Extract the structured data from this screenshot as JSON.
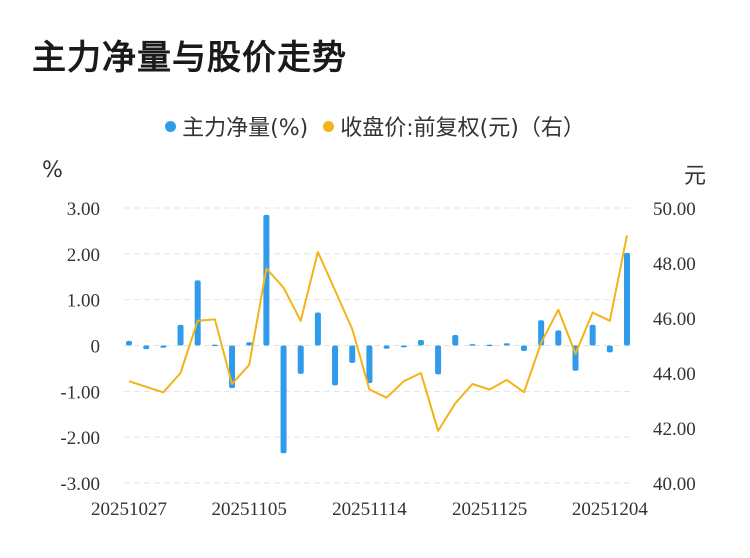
{
  "title": "主力净量与股价走势",
  "legend": {
    "series1": "主力净量(%)",
    "series2": "收盘价:前复权(元)（右）"
  },
  "axis": {
    "left_unit": "%",
    "right_unit": "元"
  },
  "colors": {
    "bar": "#2f9bea",
    "line": "#f2b418",
    "grid": "#e3e3e3"
  },
  "chart_data": {
    "type": "bar",
    "title": "主力净量与股价走势",
    "x_tick_labels": [
      "20251027",
      "20251105",
      "20251114",
      "20251125",
      "20251204"
    ],
    "x_tick_indices": [
      0,
      7,
      14,
      21,
      28
    ],
    "y_left": {
      "label": "%",
      "range": [
        -3,
        3
      ],
      "ticks": [
        "3.00",
        "2.00",
        "1.00",
        "0",
        "-1.00",
        "-2.00",
        "-3.00"
      ]
    },
    "y_right": {
      "label": "元",
      "range": [
        40,
        50
      ],
      "ticks": [
        "50.00",
        "48.00",
        "46.00",
        "44.00",
        "42.00",
        "40.00"
      ]
    },
    "grid": true,
    "legend_position": "top-center",
    "series": [
      {
        "name": "主力净量(%)",
        "type": "bar",
        "axis": "left",
        "values": [
          0.1,
          -0.08,
          -0.05,
          0.45,
          1.42,
          0.02,
          -0.93,
          0.07,
          2.85,
          -2.35,
          -0.62,
          0.72,
          -0.87,
          -0.38,
          -0.82,
          -0.07,
          -0.04,
          0.12,
          -0.63,
          0.23,
          0.03,
          0.02,
          0.05,
          -0.12,
          0.55,
          0.33,
          -0.55,
          0.45,
          -0.15,
          2.02
        ]
      },
      {
        "name": "收盘价:前复权(元)（右）",
        "type": "line",
        "axis": "right",
        "values": [
          43.7,
          43.5,
          43.3,
          44.0,
          45.9,
          45.95,
          43.6,
          44.3,
          47.8,
          47.1,
          45.9,
          48.4,
          47.0,
          45.6,
          43.4,
          43.1,
          43.7,
          44.0,
          41.9,
          42.9,
          43.6,
          43.4,
          43.75,
          43.3,
          45.1,
          46.3,
          44.7,
          46.2,
          45.9,
          49.0
        ]
      }
    ]
  }
}
